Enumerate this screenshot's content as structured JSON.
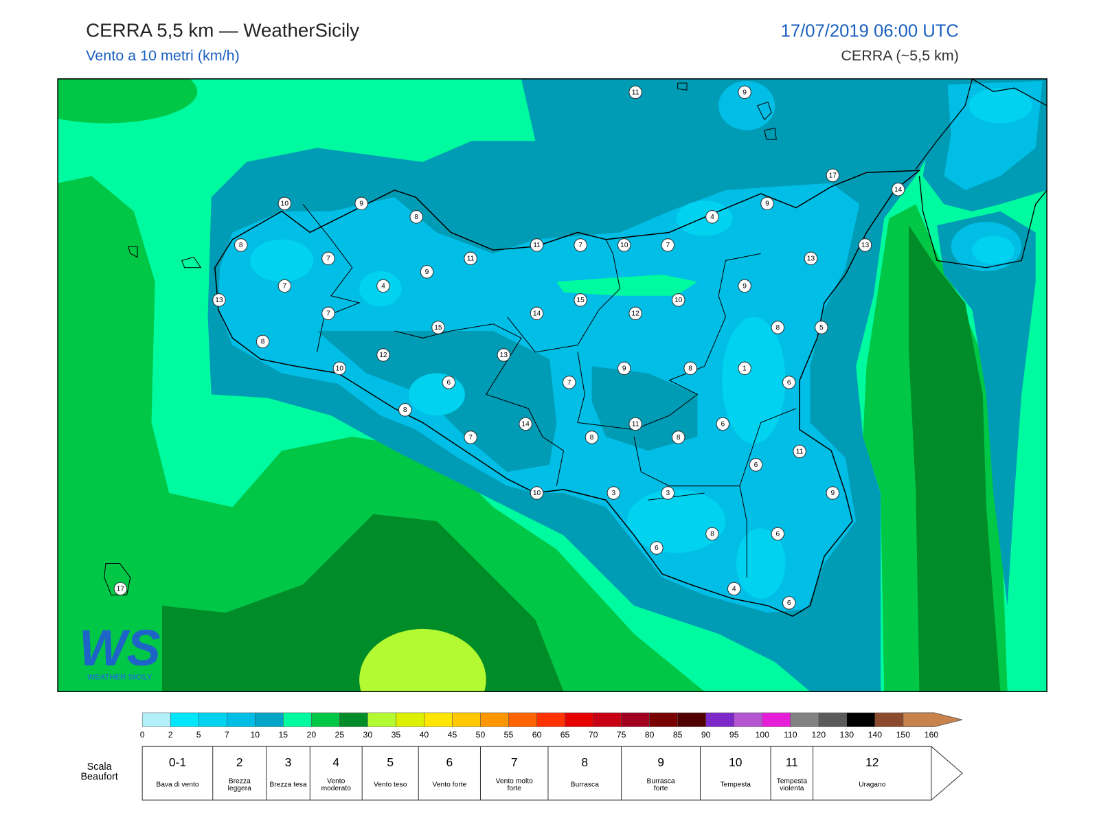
{
  "header": {
    "title": "CERRA 5,5 km — WeatherSicily",
    "subtitle": "Vento a 10 metri (km/h)",
    "date": "17/07/2019 06:00 UTC",
    "source": "CERRA (~5,5 km)"
  },
  "stations": [
    11,
    9,
    17,
    14,
    10,
    9,
    8,
    4,
    9,
    8,
    11,
    7,
    10,
    7,
    13,
    7,
    11,
    13,
    9,
    7,
    4,
    9,
    13,
    15,
    10,
    7,
    14,
    12,
    15,
    8,
    5,
    8,
    12,
    13,
    10,
    9,
    8,
    1,
    6,
    7,
    6,
    8,
    14,
    11,
    6,
    7,
    8,
    8,
    11,
    6,
    10,
    3,
    3,
    9,
    8,
    6,
    6,
    4,
    6,
    17
  ],
  "logo": {
    "mark": "WS",
    "text": "WEATHER SICILY"
  },
  "colorbar": {
    "ticks": [
      0,
      2,
      5,
      7,
      10,
      15,
      20,
      25,
      30,
      35,
      40,
      45,
      50,
      55,
      60,
      65,
      70,
      75,
      80,
      85,
      90,
      95,
      100,
      110,
      120,
      130,
      140,
      150,
      160
    ],
    "colors": [
      "#b4f0fa",
      "#00e6fa",
      "#00d2f0",
      "#00bee6",
      "#00a5c8",
      "#00faa0",
      "#00c846",
      "#008c28",
      "#b4fa32",
      "#dcf000",
      "#ffe600",
      "#ffc800",
      "#ff9600",
      "#ff6400",
      "#ff3200",
      "#e60000",
      "#c80014",
      "#a0001e",
      "#780000",
      "#500000",
      "#7d28c8",
      "#b455d2",
      "#e61ed7",
      "#828282",
      "#5a5a5a",
      "#000000",
      "#8b4a2b",
      "#c8824b"
    ]
  },
  "beaufort": {
    "title": "Scala Beaufort",
    "levels": [
      {
        "force": "0-1",
        "name": "Bava di vento"
      },
      {
        "force": "2",
        "name": "Brezza leggera"
      },
      {
        "force": "3",
        "name": "Brezza tesa"
      },
      {
        "force": "4",
        "name": "Vento moderato"
      },
      {
        "force": "5",
        "name": "Vento teso"
      },
      {
        "force": "6",
        "name": "Vento forte"
      },
      {
        "force": "7",
        "name": "Vento molto forte"
      },
      {
        "force": "8",
        "name": "Burrasca"
      },
      {
        "force": "9",
        "name": "Burrasca forte"
      },
      {
        "force": "10",
        "name": "Tempesta"
      },
      {
        "force": "11",
        "name": "Tempesta violenta"
      },
      {
        "force": "12",
        "name": "Uragano"
      }
    ]
  }
}
